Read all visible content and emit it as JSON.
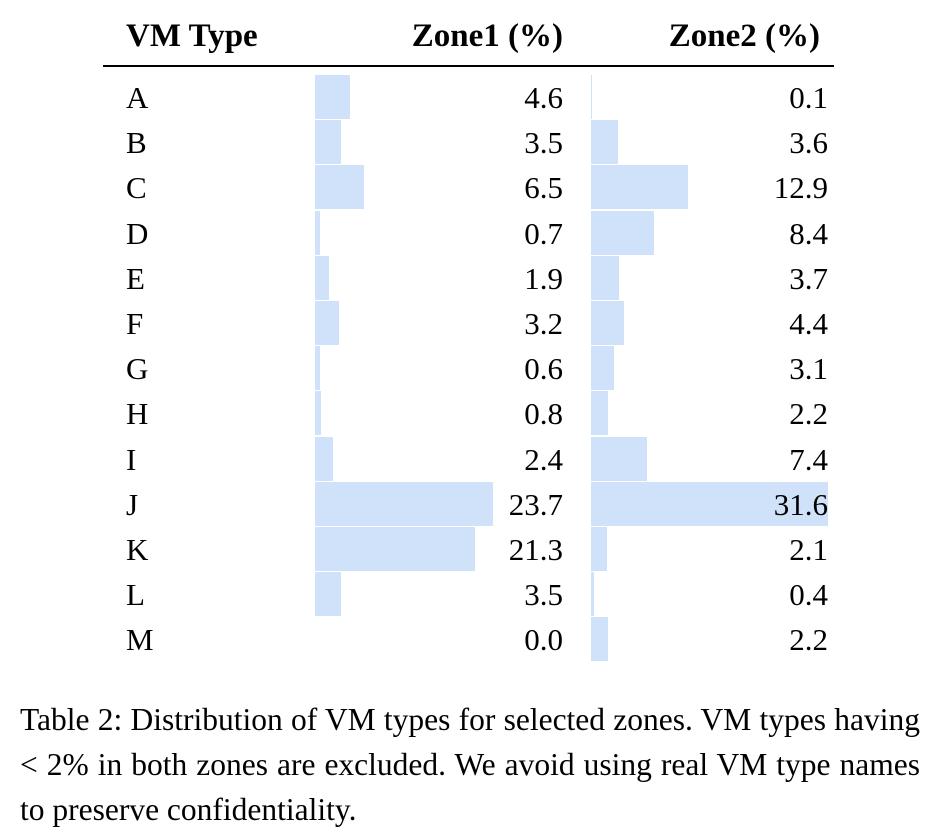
{
  "table": {
    "headers": {
      "type": "VM Type",
      "zone1": "Zone1 (%)",
      "zone2": "Zone2 (%)"
    },
    "bar_color": "#cfe2f9",
    "rows": [
      {
        "type": "A",
        "zone1": "4.6",
        "zone2": "0.1"
      },
      {
        "type": "B",
        "zone1": "3.5",
        "zone2": "3.6"
      },
      {
        "type": "C",
        "zone1": "6.5",
        "zone2": "12.9"
      },
      {
        "type": "D",
        "zone1": "0.7",
        "zone2": "8.4"
      },
      {
        "type": "E",
        "zone1": "1.9",
        "zone2": "3.7"
      },
      {
        "type": "F",
        "zone1": "3.2",
        "zone2": "4.4"
      },
      {
        "type": "G",
        "zone1": "0.6",
        "zone2": "3.1"
      },
      {
        "type": "H",
        "zone1": "0.8",
        "zone2": "2.2"
      },
      {
        "type": "I",
        "zone1": "2.4",
        "zone2": "7.4"
      },
      {
        "type": "J",
        "zone1": "23.7",
        "zone2": "31.6"
      },
      {
        "type": "K",
        "zone1": "21.3",
        "zone2": "2.1"
      },
      {
        "type": "L",
        "zone1": "3.5",
        "zone2": "0.4"
      },
      {
        "type": "M",
        "zone1": "0.0",
        "zone2": "2.2"
      }
    ]
  },
  "caption": "Table 2: Distribution of VM types for selected zones. VM types having < 2% in both zones are excluded. We avoid using real VM type names to preserve confidentiality."
}
